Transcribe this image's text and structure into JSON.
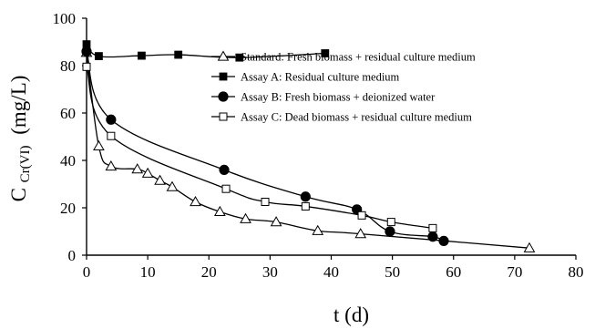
{
  "chart_data": {
    "type": "line",
    "xlabel": "t (d)",
    "ylabel": {
      "main": "C",
      "subscript": "Cr(VI)",
      "unit": "(mg/L)"
    },
    "xlim": [
      0,
      80
    ],
    "ylim": [
      0,
      100
    ],
    "xticks": [
      0,
      10,
      20,
      30,
      40,
      50,
      60,
      70,
      80
    ],
    "yticks": [
      0,
      20,
      40,
      60,
      80,
      100
    ],
    "grid": false,
    "legend_position": "right",
    "series": [
      {
        "name": "Standard: Fresh biomass + residual culture medium",
        "marker": "open-triangle",
        "x": [
          0,
          2,
          4,
          8.3,
          10,
          12,
          14,
          17.8,
          21.8,
          26,
          31,
          37.8,
          44.8,
          72.4
        ],
        "y": [
          85.5,
          46,
          37.5,
          36.3,
          34.5,
          31.5,
          28.8,
          22.5,
          18.3,
          15.3,
          14,
          10.3,
          9,
          3
        ]
      },
      {
        "name": "Assay A: Residual culture medium",
        "marker": "filled-square",
        "x": [
          0,
          2,
          9,
          15,
          25,
          39
        ],
        "y": [
          89,
          84,
          84.2,
          84.6,
          83.4,
          85.2
        ]
      },
      {
        "name": "Assay B: Fresh biomass + deionized water",
        "marker": "filled-circle",
        "x": [
          0,
          4,
          22.5,
          35.8,
          44.2,
          49.6,
          56.6,
          58.4
        ],
        "y": [
          86,
          57.2,
          36,
          24.7,
          19.3,
          10,
          7.8,
          6
        ]
      },
      {
        "name": "Assay C: Dead biomass + residual culture medium",
        "marker": "open-square",
        "x": [
          0,
          4,
          22.8,
          29.2,
          35.8,
          45,
          49.8,
          56.6
        ],
        "y": [
          79.5,
          50.3,
          28,
          22.5,
          20.6,
          16.8,
          14,
          11.4
        ]
      }
    ]
  }
}
